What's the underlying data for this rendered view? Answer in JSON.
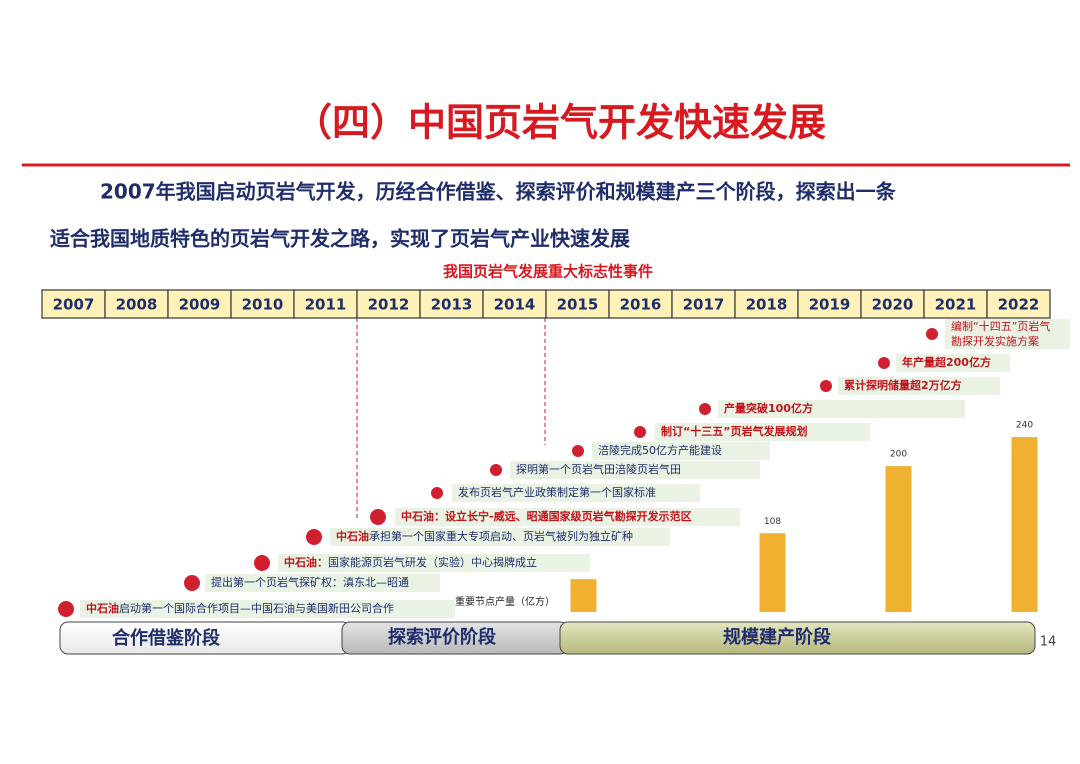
{
  "title": "（四）中国页岩气开发快速发展",
  "intro": [
    "2007年我国启动页岩气开发，历经合作借鉴、探索评价和规模建产三个阶段，探索出一条",
    "适合我国地质特色的页岩气开发之路，实现了页岩气产业快速发展"
  ],
  "timeline_title": "我国页岩气发展重大标志性事件",
  "years": [
    "2007",
    "2008",
    "2009",
    "2010",
    "2011",
    "2012",
    "2013",
    "2014",
    "2015",
    "2016",
    "2017",
    "2018",
    "2019",
    "2020",
    "2021",
    "2022"
  ],
  "events": [
    {
      "highlight": "中石油",
      "text": "启动第一个国际合作项目—中国石油与美国新田公司合作"
    },
    {
      "text": "提出第一个页岩气探矿权：滇东北—昭通"
    },
    {
      "highlight": "中石油：",
      "text": "国家能源页岩气研发（实验）中心揭牌成立"
    },
    {
      "highlight": "中石油",
      "text": "承担第一个国家重大专项启动、页岩气被列为独立矿种"
    },
    {
      "highlight": "中石油：设立长宁-威远、昭通国家级页岩气勘探开发示范区"
    },
    {
      "text": "发布页岩气产业政策制定第一个国家标准"
    },
    {
      "text": "探明第一个页岩气田涪陵页岩气田"
    },
    {
      "text": "涪陵完成50亿方产能建设"
    },
    {
      "highlight": "制订“十三五”页岩气发展规划"
    },
    {
      "highlight": "产量突破100亿方"
    },
    {
      "highlight": "累计探明储量超2万亿方"
    },
    {
      "highlight": "年产量超200亿方"
    },
    {
      "highlight": "编制“十四五”页岩气勘探开发实施方案"
    }
  ],
  "stages": [
    "合作借鉴阶段",
    "探索评价阶段",
    "规模建产阶段"
  ],
  "page_number": "14",
  "chart_data": {
    "type": "bar",
    "title": "重要节点产量（亿方）",
    "categories": [
      "2015",
      "2018",
      "2020",
      "2022"
    ],
    "values": [
      45,
      108,
      200,
      240
    ],
    "color": "#f0b030"
  }
}
